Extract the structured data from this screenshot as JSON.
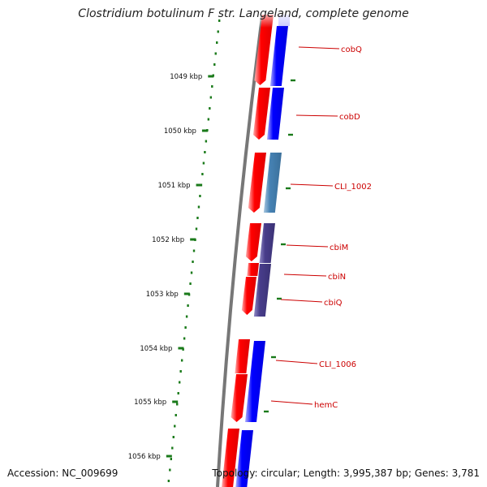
{
  "title": "Clostridium botulinum F str. Langeland, complete genome",
  "accession": "Accession: NC_009699",
  "topology": "Topology: circular; Length: 3,995,387 bp; Genes: 3,781",
  "colors": {
    "forward_strand": "#ff0000",
    "reverse_strand": "#0000ff",
    "reverse_strand_alt1": "#4682b4",
    "reverse_strand_alt2": "#483d8b",
    "gene_label": "#cc0000",
    "ruler_ticks": "#1a7a1a",
    "backbone": "#777777"
  },
  "ruler": [
    {
      "label": "1049 kbp"
    },
    {
      "label": "1050 kbp"
    },
    {
      "label": "1051 kbp"
    },
    {
      "label": "1052 kbp"
    },
    {
      "label": "1053 kbp"
    },
    {
      "label": "1054 kbp"
    },
    {
      "label": "1055 kbp"
    },
    {
      "label": "1056 kbp"
    }
  ],
  "genes": [
    {
      "name": "cobQ"
    },
    {
      "name": "cobD"
    },
    {
      "name": "CLI_1002"
    },
    {
      "name": "cbiM"
    },
    {
      "name": "cbiN"
    },
    {
      "name": "cbiQ"
    },
    {
      "name": "CLI_1006"
    },
    {
      "name": "hemC"
    }
  ]
}
